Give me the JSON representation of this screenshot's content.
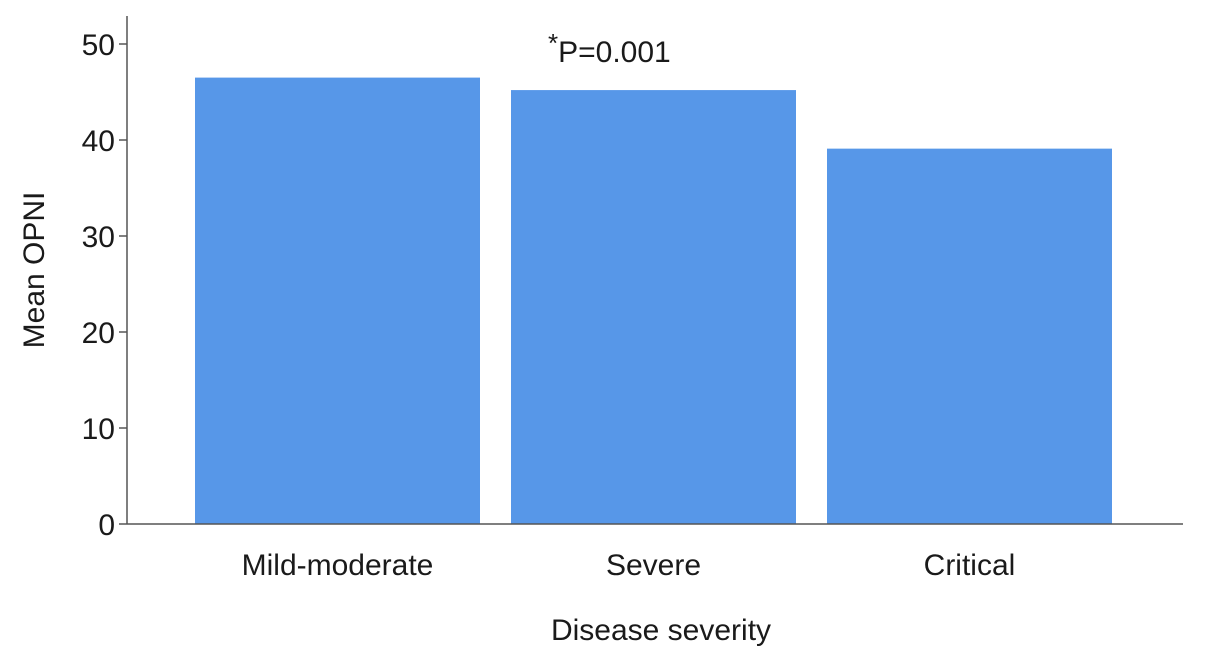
{
  "chart_data": {
    "type": "bar",
    "categories": [
      "Mild-moderate",
      "Severe",
      "Critical"
    ],
    "values": [
      46.5,
      45.2,
      39.1
    ],
    "xlabel": "Disease severity",
    "ylabel": "Mean OPNI",
    "ylim": [
      0,
      50
    ],
    "yticks": [
      "0",
      "10",
      "20",
      "30",
      "40",
      "50"
    ],
    "grid": false,
    "bar_color": "#5797e8",
    "annotation": {
      "star": "*",
      "text": "P=0.001"
    }
  }
}
